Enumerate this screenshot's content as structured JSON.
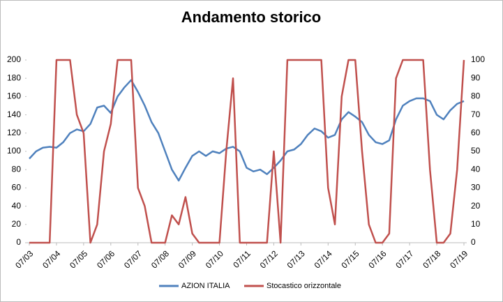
{
  "chart_data": {
    "type": "line",
    "title": "Andamento storico",
    "categories": [
      "07/03",
      null,
      null,
      null,
      "07/04",
      null,
      null,
      null,
      "07/05",
      null,
      null,
      null,
      "07/06",
      null,
      null,
      null,
      "07/07",
      null,
      null,
      null,
      "07/08",
      null,
      null,
      null,
      "07/09",
      null,
      null,
      null,
      "07/10",
      null,
      null,
      null,
      "07/11",
      null,
      null,
      null,
      "07/12",
      null,
      null,
      null,
      "07/13",
      null,
      null,
      null,
      "07/14",
      null,
      null,
      null,
      "07/15",
      null,
      null,
      null,
      "07/16",
      null,
      null,
      null,
      "07/17",
      null,
      null,
      null,
      "07/18",
      null,
      null,
      null,
      "07/19"
    ],
    "series": [
      {
        "name": "AZION ITALIA",
        "color": "#4f81bd",
        "values": [
          92,
          100,
          104,
          105,
          104,
          110,
          120,
          124,
          122,
          130,
          148,
          150,
          142,
          160,
          170,
          178,
          165,
          150,
          132,
          120,
          100,
          80,
          68,
          82,
          95,
          100,
          95,
          100,
          98,
          103,
          105,
          100,
          82,
          78,
          80,
          75,
          82,
          90,
          100,
          102,
          108,
          118,
          125,
          122,
          115,
          118,
          135,
          143,
          138,
          132,
          118,
          110,
          108,
          112,
          135,
          150,
          155,
          158,
          158,
          155,
          140,
          135,
          145,
          152,
          155
        ]
      },
      {
        "name": "Stocastico orizzontale",
        "color": "#c0504d",
        "axis": "y2",
        "values": [
          0,
          0,
          0,
          0,
          100,
          100,
          100,
          70,
          60,
          0,
          10,
          50,
          65,
          100,
          100,
          100,
          30,
          20,
          0,
          0,
          0,
          15,
          10,
          25,
          5,
          0,
          0,
          0,
          0,
          50,
          90,
          0,
          0,
          0,
          0,
          0,
          50,
          0,
          100,
          100,
          100,
          100,
          100,
          100,
          30,
          10,
          80,
          100,
          100,
          50,
          10,
          0,
          0,
          5,
          90,
          100,
          100,
          100,
          100,
          40,
          0,
          0,
          5,
          40,
          100
        ]
      }
    ],
    "ylim": [
      0,
      200
    ],
    "yticks": [
      0,
      20,
      40,
      60,
      80,
      100,
      120,
      140,
      160,
      180,
      200
    ],
    "y2lim": [
      0,
      100
    ],
    "y2ticks": [
      0,
      10,
      20,
      30,
      40,
      50,
      60,
      70,
      80,
      90,
      100
    ],
    "legend": "bottom",
    "grid": false
  }
}
